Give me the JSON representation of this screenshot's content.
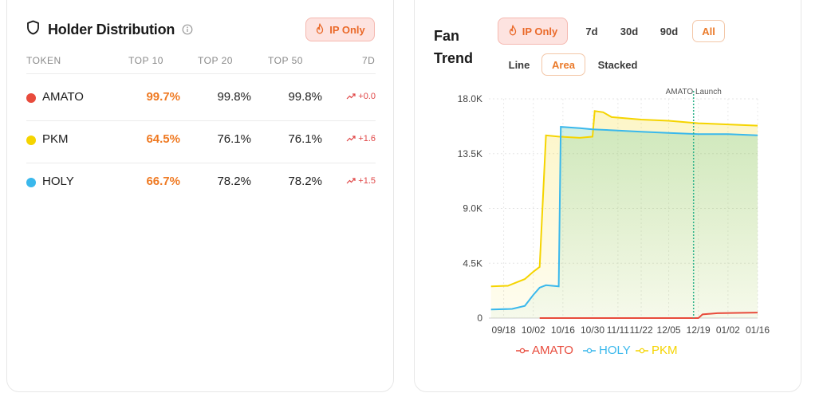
{
  "holder": {
    "title": "Holder Distribution",
    "ip_only": "IP Only",
    "columns": [
      "TOKEN",
      "TOP 10",
      "TOP 20",
      "TOP 50",
      "7D"
    ],
    "rows": [
      {
        "token": "AMATO",
        "color": "#e84b3c",
        "top10": "99.7%",
        "top20": "99.8%",
        "top50": "99.8%",
        "d7": "+0.0"
      },
      {
        "token": "PKM",
        "color": "#f5d400",
        "top10": "64.5%",
        "top20": "76.1%",
        "top50": "76.1%",
        "d7": "+1.6"
      },
      {
        "token": "HOLY",
        "color": "#3ab8ec",
        "top10": "66.7%",
        "top20": "78.2%",
        "top50": "78.2%",
        "d7": "+1.5"
      }
    ]
  },
  "fan": {
    "title_line1": "Fan",
    "title_line2": "Trend",
    "ip_only": "IP Only",
    "ranges": [
      "7d",
      "30d",
      "90d",
      "All"
    ],
    "active_range": "All",
    "modes": [
      "Line",
      "Area",
      "Stacked"
    ],
    "active_mode": "Area",
    "legend": [
      "AMATO",
      "HOLY",
      "PKM"
    ]
  },
  "chart_data": {
    "type": "area",
    "ylim": [
      0,
      18000
    ],
    "y_ticks": [
      "0",
      "4.5K",
      "9.0K",
      "13.5K",
      "18.0K"
    ],
    "x_ticks": [
      "09/18",
      "10/02",
      "10/16",
      "10/30",
      "11/11",
      "11/22",
      "12/05",
      "12/19",
      "01/02",
      "01/16"
    ],
    "annotation": "AMATO Launch",
    "colors": {
      "AMATO": "#e84b3c",
      "HOLY": "#3ab8ec",
      "PKM": "#f5d400"
    },
    "series": [
      {
        "name": "PKM",
        "points": [
          [
            "09/12",
            2600
          ],
          [
            "09/20",
            2650
          ],
          [
            "09/28",
            3200
          ],
          [
            "10/02",
            3800
          ],
          [
            "10/05",
            4200
          ],
          [
            "10/08",
            15000
          ],
          [
            "10/14",
            14900
          ],
          [
            "10/24",
            14800
          ],
          [
            "10/30",
            14900
          ],
          [
            "10/31",
            17000
          ],
          [
            "11/04",
            16900
          ],
          [
            "11/08",
            16500
          ],
          [
            "11/22",
            16300
          ],
          [
            "12/05",
            16200
          ],
          [
            "12/19",
            16000
          ],
          [
            "01/02",
            15900
          ],
          [
            "01/16",
            15800
          ]
        ]
      },
      {
        "name": "HOLY",
        "points": [
          [
            "09/12",
            700
          ],
          [
            "09/22",
            750
          ],
          [
            "09/28",
            1000
          ],
          [
            "10/02",
            1900
          ],
          [
            "10/05",
            2500
          ],
          [
            "10/08",
            2700
          ],
          [
            "10/14",
            2600
          ],
          [
            "10/15",
            15700
          ],
          [
            "10/24",
            15600
          ],
          [
            "10/30",
            15500
          ],
          [
            "11/11",
            15400
          ],
          [
            "11/22",
            15300
          ],
          [
            "12/05",
            15200
          ],
          [
            "12/19",
            15100
          ],
          [
            "01/02",
            15100
          ],
          [
            "01/16",
            15000
          ]
        ]
      },
      {
        "name": "AMATO",
        "points": [
          [
            "10/05",
            0
          ],
          [
            "12/05",
            0
          ],
          [
            "12/19",
            0
          ],
          [
            "12/21",
            300
          ],
          [
            "12/28",
            400
          ],
          [
            "01/16",
            450
          ]
        ]
      }
    ]
  }
}
